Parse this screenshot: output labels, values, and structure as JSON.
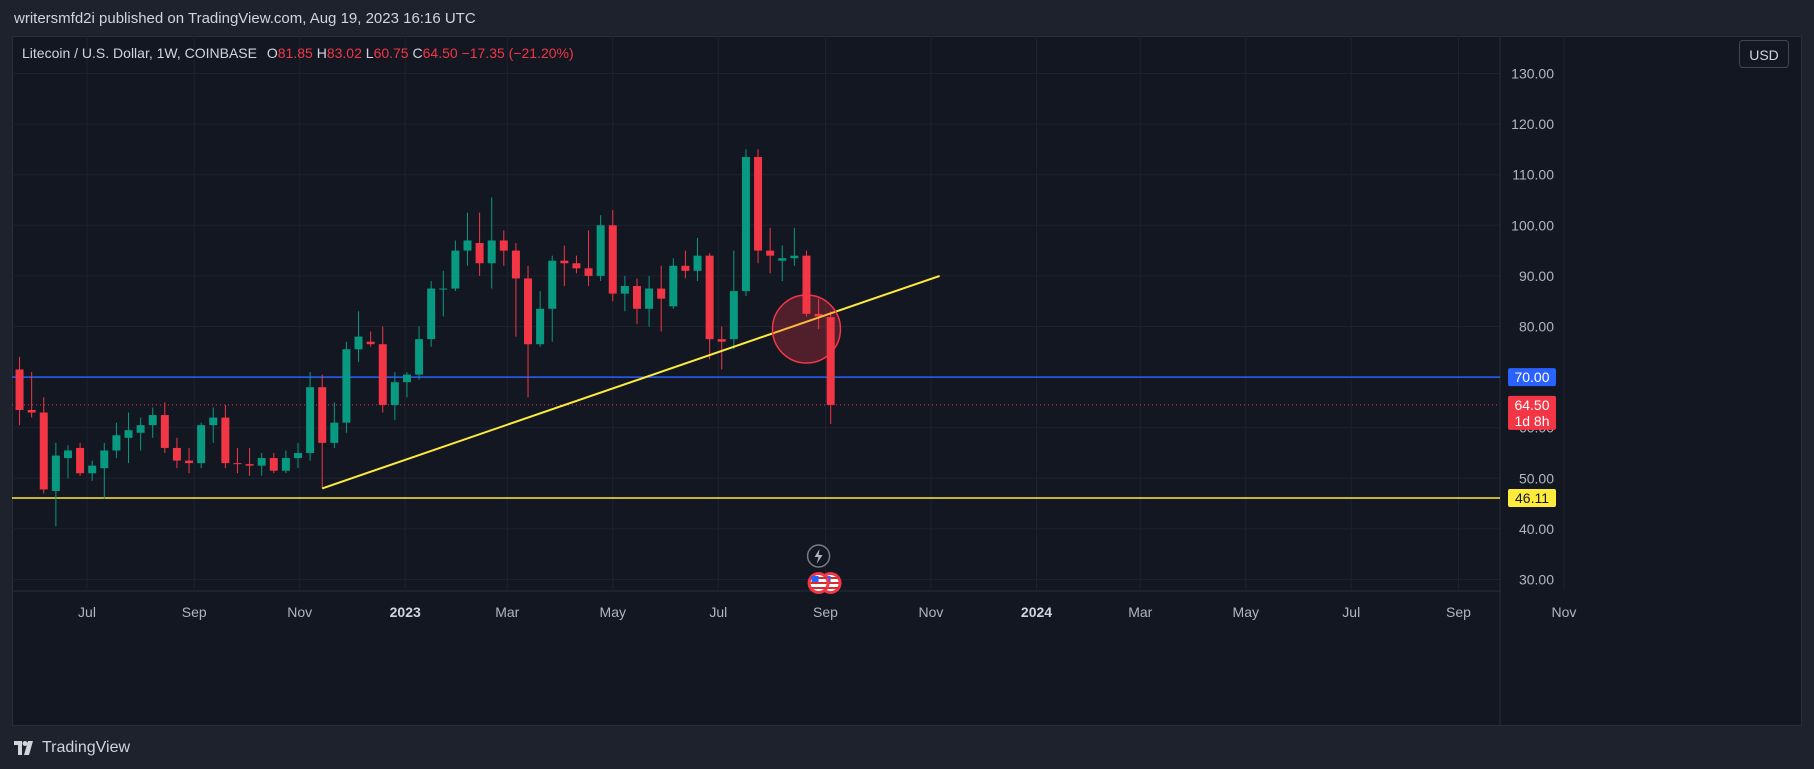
{
  "header": {
    "publish_line": "writersmfd2i published on TradingView.com, Aug 19, 2023 16:16 UTC"
  },
  "legend": {
    "symbol": "Litecoin / U.S. Dollar, 1W, COINBASE",
    "o_label": "O",
    "o_value": "81.85",
    "h_label": "H",
    "h_value": "83.02",
    "l_label": "L",
    "l_value": "60.75",
    "c_label": "C",
    "c_value": "64.50",
    "change": "−17.35 (−21.20%)"
  },
  "currency_button": "USD",
  "footer": {
    "brand": "TradingView"
  },
  "colors": {
    "up": "#089981",
    "down": "#f23645",
    "support": "#2962ff",
    "trend": "#ffeb3b",
    "bg": "#131722"
  },
  "icons": [
    "lightning-icon",
    "us-flag-icon",
    "tradingview-logo-icon"
  ],
  "chart_data": {
    "type": "candlestick",
    "title": "Litecoin / U.S. Dollar, 1W, COINBASE",
    "ylim": [
      25,
      135
    ],
    "y_ticks": [
      "130.00",
      "120.00",
      "110.00",
      "100.00",
      "90.00",
      "80.00",
      "60.00",
      "50.00",
      "40.00",
      "30.00"
    ],
    "x_ticks": [
      {
        "label": "Jul",
        "date": "2022-07-01"
      },
      {
        "label": "Sep",
        "date": "2022-09-01"
      },
      {
        "label": "Nov",
        "date": "2022-11-01"
      },
      {
        "label": "2023",
        "date": "2023-01-01",
        "bold": true
      },
      {
        "label": "Mar",
        "date": "2023-03-01"
      },
      {
        "label": "May",
        "date": "2023-05-01"
      },
      {
        "label": "Jul",
        "date": "2023-07-01"
      },
      {
        "label": "Sep",
        "date": "2023-09-01"
      },
      {
        "label": "Nov",
        "date": "2023-11-01"
      },
      {
        "label": "2024",
        "date": "2024-01-01",
        "bold": true
      },
      {
        "label": "Mar",
        "date": "2024-03-01"
      },
      {
        "label": "May",
        "date": "2024-05-01"
      },
      {
        "label": "Jul",
        "date": "2024-07-01"
      },
      {
        "label": "Sep",
        "date": "2024-09-01"
      },
      {
        "label": "Nov",
        "date": "2024-11-01"
      }
    ],
    "candles": [
      {
        "date": "2022-05-23",
        "o": 71.5,
        "h": 74.0,
        "l": 60.5,
        "c": 63.5
      },
      {
        "date": "2022-05-30",
        "o": 63.5,
        "h": 71.0,
        "l": 62.0,
        "c": 63.0
      },
      {
        "date": "2022-06-06",
        "o": 63.0,
        "h": 66.0,
        "l": 47.0,
        "c": 47.8
      },
      {
        "date": "2022-06-13",
        "o": 47.5,
        "h": 57.0,
        "l": 40.5,
        "c": 54.5
      },
      {
        "date": "2022-06-20",
        "o": 54.0,
        "h": 56.5,
        "l": 50.0,
        "c": 55.5
      },
      {
        "date": "2022-06-27",
        "o": 56.0,
        "h": 57.0,
        "l": 50.5,
        "c": 51.0
      },
      {
        "date": "2022-07-04",
        "o": 51.0,
        "h": 53.5,
        "l": 49.5,
        "c": 52.5
      },
      {
        "date": "2022-07-11",
        "o": 52.0,
        "h": 57.0,
        "l": 46.0,
        "c": 55.5
      },
      {
        "date": "2022-07-18",
        "o": 55.5,
        "h": 61.0,
        "l": 54.0,
        "c": 58.5
      },
      {
        "date": "2022-07-25",
        "o": 58.0,
        "h": 63.0,
        "l": 53.0,
        "c": 59.5
      },
      {
        "date": "2022-08-01",
        "o": 59.0,
        "h": 62.0,
        "l": 55.5,
        "c": 60.5
      },
      {
        "date": "2022-08-08",
        "o": 60.5,
        "h": 64.0,
        "l": 58.0,
        "c": 62.5
      },
      {
        "date": "2022-08-15",
        "o": 62.5,
        "h": 65.0,
        "l": 55.0,
        "c": 56.0
      },
      {
        "date": "2022-08-22",
        "o": 56.0,
        "h": 58.0,
        "l": 52.0,
        "c": 53.5
      },
      {
        "date": "2022-08-29",
        "o": 53.5,
        "h": 56.0,
        "l": 51.0,
        "c": 53.0
      },
      {
        "date": "2022-09-05",
        "o": 53.0,
        "h": 61.0,
        "l": 52.0,
        "c": 60.5
      },
      {
        "date": "2022-09-12",
        "o": 60.5,
        "h": 64.0,
        "l": 57.0,
        "c": 62.0
      },
      {
        "date": "2022-09-19",
        "o": 62.0,
        "h": 64.5,
        "l": 52.0,
        "c": 53.0
      },
      {
        "date": "2022-09-26",
        "o": 53.0,
        "h": 56.0,
        "l": 51.0,
        "c": 52.8
      },
      {
        "date": "2022-10-03",
        "o": 52.8,
        "h": 56.0,
        "l": 50.5,
        "c": 52.5
      },
      {
        "date": "2022-10-10",
        "o": 52.5,
        "h": 55.0,
        "l": 50.5,
        "c": 54.0
      },
      {
        "date": "2022-10-17",
        "o": 54.0,
        "h": 55.0,
        "l": 51.0,
        "c": 51.5
      },
      {
        "date": "2022-10-24",
        "o": 51.5,
        "h": 55.5,
        "l": 51.0,
        "c": 54.0
      },
      {
        "date": "2022-10-31",
        "o": 54.0,
        "h": 57.0,
        "l": 52.0,
        "c": 55.0
      },
      {
        "date": "2022-11-07",
        "o": 55.0,
        "h": 71.0,
        "l": 53.5,
        "c": 68.0
      },
      {
        "date": "2022-11-14",
        "o": 68.0,
        "h": 70.5,
        "l": 48.0,
        "c": 57.0
      },
      {
        "date": "2022-11-21",
        "o": 57.0,
        "h": 65.0,
        "l": 56.0,
        "c": 61.0
      },
      {
        "date": "2022-11-28",
        "o": 61.0,
        "h": 77.0,
        "l": 59.0,
        "c": 75.5
      },
      {
        "date": "2022-12-05",
        "o": 75.5,
        "h": 83.0,
        "l": 73.0,
        "c": 78.0
      },
      {
        "date": "2022-12-12",
        "o": 77.0,
        "h": 79.0,
        "l": 76.0,
        "c": 76.5
      },
      {
        "date": "2022-12-19",
        "o": 76.5,
        "h": 80.0,
        "l": 63.0,
        "c": 64.5
      },
      {
        "date": "2022-12-26",
        "o": 64.5,
        "h": 71.0,
        "l": 61.5,
        "c": 69.0
      },
      {
        "date": "2023-01-02",
        "o": 69.0,
        "h": 71.0,
        "l": 66.0,
        "c": 70.5
      },
      {
        "date": "2023-01-09",
        "o": 70.5,
        "h": 80.0,
        "l": 69.5,
        "c": 77.5
      },
      {
        "date": "2023-01-16",
        "o": 77.5,
        "h": 89.0,
        "l": 76.0,
        "c": 87.5
      },
      {
        "date": "2023-01-23",
        "o": 87.5,
        "h": 91.0,
        "l": 82.0,
        "c": 87.5
      },
      {
        "date": "2023-01-30",
        "o": 87.5,
        "h": 97.0,
        "l": 87.0,
        "c": 95.0
      },
      {
        "date": "2023-02-06",
        "o": 95.0,
        "h": 102.5,
        "l": 92.0,
        "c": 97.0
      },
      {
        "date": "2023-02-13",
        "o": 96.5,
        "h": 102.5,
        "l": 90.0,
        "c": 92.5
      },
      {
        "date": "2023-02-20",
        "o": 92.5,
        "h": 105.5,
        "l": 87.5,
        "c": 97.0
      },
      {
        "date": "2023-02-27",
        "o": 97.0,
        "h": 99.0,
        "l": 92.0,
        "c": 95.0
      },
      {
        "date": "2023-03-06",
        "o": 95.0,
        "h": 96.5,
        "l": 78.0,
        "c": 89.5
      },
      {
        "date": "2023-03-13",
        "o": 89.5,
        "h": 92.0,
        "l": 66.0,
        "c": 76.5
      },
      {
        "date": "2023-03-20",
        "o": 76.5,
        "h": 87.0,
        "l": 76.0,
        "c": 83.5
      },
      {
        "date": "2023-03-27",
        "o": 83.5,
        "h": 94.0,
        "l": 77.0,
        "c": 93.0
      },
      {
        "date": "2023-04-03",
        "o": 93.0,
        "h": 96.0,
        "l": 88.0,
        "c": 92.5
      },
      {
        "date": "2023-04-10",
        "o": 92.5,
        "h": 94.0,
        "l": 90.5,
        "c": 91.5
      },
      {
        "date": "2023-04-17",
        "o": 91.5,
        "h": 99.0,
        "l": 88.0,
        "c": 90.0
      },
      {
        "date": "2023-04-24",
        "o": 90.0,
        "h": 102.0,
        "l": 89.0,
        "c": 100.0
      },
      {
        "date": "2023-05-01",
        "o": 100.0,
        "h": 103.0,
        "l": 85.0,
        "c": 86.5
      },
      {
        "date": "2023-05-08",
        "o": 86.5,
        "h": 90.0,
        "l": 83.0,
        "c": 88.0
      },
      {
        "date": "2023-05-15",
        "o": 88.0,
        "h": 89.5,
        "l": 80.5,
        "c": 83.5
      },
      {
        "date": "2023-05-22",
        "o": 83.5,
        "h": 90.0,
        "l": 80.0,
        "c": 87.5
      },
      {
        "date": "2023-05-29",
        "o": 87.5,
        "h": 92.0,
        "l": 79.0,
        "c": 85.5
      },
      {
        "date": "2023-06-05",
        "o": 84.0,
        "h": 93.5,
        "l": 83.5,
        "c": 92.0
      },
      {
        "date": "2023-06-12",
        "o": 92.0,
        "h": 95.0,
        "l": 89.5,
        "c": 91.0
      },
      {
        "date": "2023-06-19",
        "o": 91.0,
        "h": 97.5,
        "l": 89.0,
        "c": 94.0
      },
      {
        "date": "2023-06-26",
        "o": 94.0,
        "h": 94.5,
        "l": 73.5,
        "c": 77.5
      },
      {
        "date": "2023-07-03",
        "o": 77.5,
        "h": 80.0,
        "l": 71.5,
        "c": 77.0
      },
      {
        "date": "2023-07-10",
        "o": 77.5,
        "h": 95.0,
        "l": 75.5,
        "c": 87.0
      },
      {
        "date": "2023-07-17",
        "o": 87.0,
        "h": 115.0,
        "l": 86.0,
        "c": 113.5
      },
      {
        "date": "2023-07-24",
        "o": 113.5,
        "h": 115.0,
        "l": 92.5,
        "c": 95.0
      },
      {
        "date": "2023-07-31",
        "o": 95.0,
        "h": 99.5,
        "l": 90.5,
        "c": 94.0
      },
      {
        "date": "2023-08-07",
        "o": 93.0,
        "h": 96.0,
        "l": 89.0,
        "c": 93.5
      },
      {
        "date": "2023-08-14",
        "o": 93.5,
        "h": 99.5,
        "l": 92.0,
        "c": 94.0
      },
      {
        "date": "2023-08-21",
        "o": 94.0,
        "h": 95.0,
        "l": 82.0,
        "c": 82.5
      },
      {
        "date": "2023-08-28",
        "o": 82.5,
        "h": 85.5,
        "l": 79.5,
        "c": 82.0
      },
      {
        "date": "2023-09-04",
        "o": 81.85,
        "h": 83.02,
        "l": 60.75,
        "c": 64.5
      }
    ],
    "horizontal_lines": [
      {
        "name": "resistance",
        "value": 70.0,
        "label": "70.00",
        "color": "#2962ff"
      },
      {
        "name": "support",
        "value": 46.11,
        "label": "46.11",
        "color": "#ffeb3b"
      }
    ],
    "trendline": {
      "from": {
        "date": "2022-11-14",
        "value": 48.0
      },
      "to": {
        "date": "2023-11-06",
        "value": 90.0
      },
      "color": "#ffeb3b"
    },
    "last_price": {
      "value": 64.5,
      "label": "64.50",
      "countdown": "1d 8h",
      "color": "#f23645"
    },
    "highlight_circle": {
      "date": "2023-08-21",
      "value": 79.5
    },
    "grid": true,
    "legend_position": "top-left"
  }
}
